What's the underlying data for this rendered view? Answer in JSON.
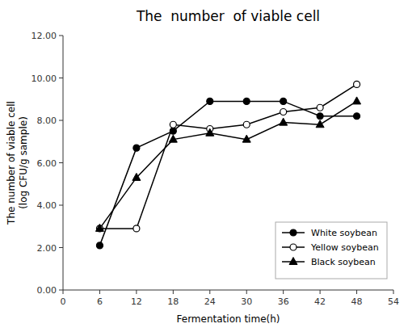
{
  "chart_data": {
    "type": "line",
    "title": "The  number  of viable cell",
    "x_label": "Fermentation time(h)",
    "y_label": "The number of viable cell\n(log CFU/g sample)",
    "x": [
      6,
      12,
      18,
      24,
      30,
      36,
      42,
      48
    ],
    "series": [
      {
        "name": "White soybean",
        "color": "#000000",
        "marker": "circle",
        "values": [
          2.1,
          6.7,
          7.5,
          8.9,
          8.9,
          8.9,
          8.2,
          8.2
        ]
      },
      {
        "name": "Yellow soybean",
        "color": "#000000",
        "marker": "circle-open",
        "values": [
          2.9,
          2.9,
          7.8,
          7.6,
          7.8,
          8.4,
          8.6,
          9.7
        ]
      },
      {
        "name": "Black soybean",
        "color": "#000000",
        "marker": "triangle",
        "values": [
          2.9,
          5.3,
          7.1,
          7.4,
          7.1,
          7.9,
          7.8,
          8.9
        ]
      }
    ],
    "xlim": [
      0,
      54
    ],
    "xticks": [
      0,
      6,
      12,
      18,
      24,
      30,
      36,
      42,
      48,
      54
    ],
    "ylim": [
      0.0,
      12.0
    ],
    "yticks": [
      {
        "value": 0.0,
        "label": "0.00"
      },
      {
        "value": 2.0,
        "label": "2.00"
      },
      {
        "value": 4.0,
        "label": "4.00"
      },
      {
        "value": 6.0,
        "label": "6.00"
      },
      {
        "value": 8.0,
        "label": "8.00"
      },
      {
        "value": 10.0,
        "label": "10.00"
      },
      {
        "value": 12.0,
        "label": "12.00"
      }
    ],
    "grid": false,
    "legend": "lower right"
  }
}
